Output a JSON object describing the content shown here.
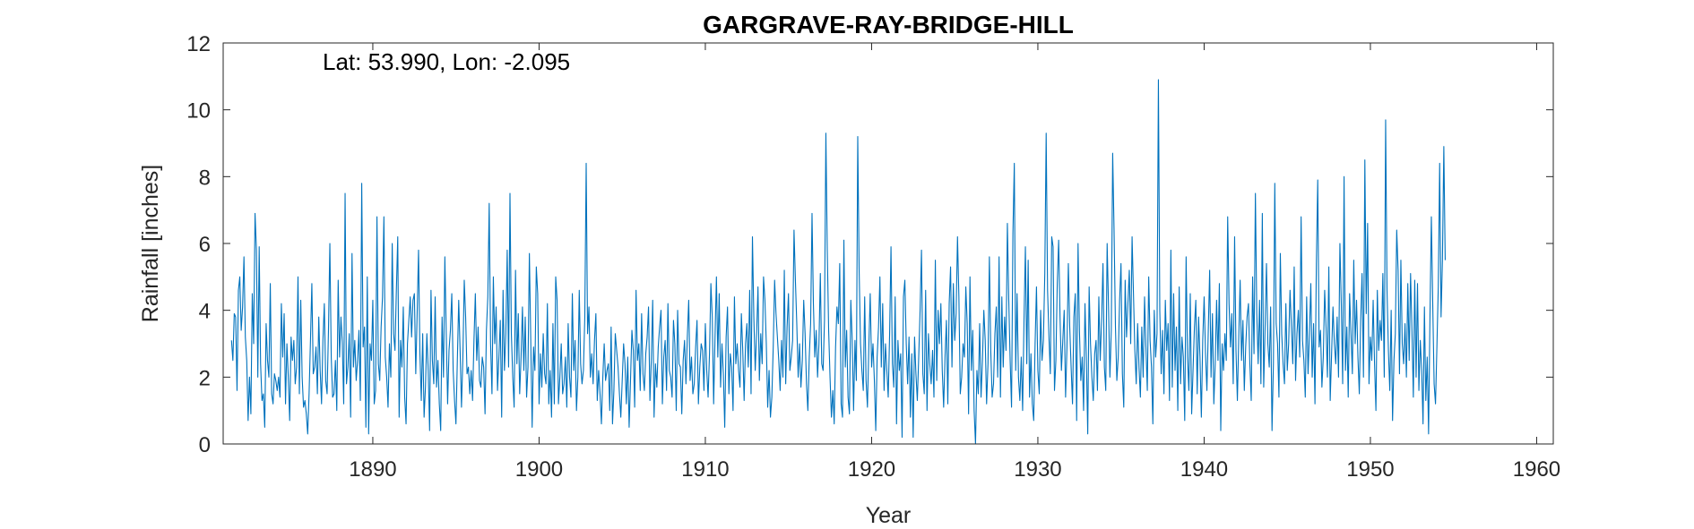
{
  "chart_data": {
    "type": "line",
    "title": "GARGRAVE-RAY-BRIDGE-HILL",
    "annotation": "Lat: 53.990, Lon: -2.095",
    "xlabel": "Year",
    "ylabel": "Rainfall [inches]",
    "xlim": [
      1881,
      1961
    ],
    "ylim": [
      0,
      12
    ],
    "xticks": [
      1890,
      1900,
      1910,
      1920,
      1930,
      1940,
      1950,
      1960
    ],
    "yticks": [
      0,
      2,
      4,
      6,
      8,
      10,
      12
    ],
    "grid": false,
    "series_color": "#0072BD",
    "series": [
      {
        "x_start": 1881.5,
        "x_step": 0.0833333,
        "values": [
          3.1,
          2.5,
          3.9,
          3.8,
          1.6,
          4.6,
          5.0,
          3.4,
          4.1,
          5.6,
          3.2,
          2.5,
          0.7,
          2.0,
          0.9,
          4.5,
          3.0,
          6.9,
          5.8,
          2.0,
          5.9,
          2.4,
          1.3,
          1.5,
          0.5,
          3.6,
          2.5,
          2.0,
          4.8,
          1.5,
          1.2,
          2.1,
          1.9,
          1.6,
          2.0,
          1.4,
          4.2,
          2.6,
          3.9,
          1.2,
          3.0,
          2.0,
          0.7,
          3.2,
          2.5,
          3.1,
          1.8,
          2.3,
          5.0,
          1.5,
          4.3,
          2.0,
          1.1,
          1.3,
          0.9,
          0.3,
          1.5,
          3.1,
          4.8,
          2.1,
          2.3,
          2.9,
          1.5,
          3.8,
          2.2,
          1.2,
          3.1,
          4.2,
          1.9,
          1.5,
          3.4,
          6.0,
          2.6,
          1.4,
          1.5,
          2.5,
          1.0,
          4.9,
          2.6,
          3.8,
          3.0,
          1.2,
          7.5,
          1.8,
          2.3,
          3.3,
          0.8,
          5.7,
          2.3,
          3.1,
          1.9,
          2.5,
          3.4,
          1.3,
          7.8,
          2.9,
          3.5,
          0.5,
          5.0,
          0.3,
          3.0,
          2.5,
          4.3,
          1.2,
          1.6,
          6.8,
          2.4,
          1.9,
          3.5,
          4.4,
          6.8,
          2.6,
          2.0,
          1.1,
          3.0,
          2.0,
          6.0,
          3.3,
          2.8,
          4.6,
          6.2,
          0.8,
          3.1,
          2.3,
          4.1,
          1.4,
          0.6,
          3.0,
          3.7,
          4.4,
          3.2,
          4.3,
          4.5,
          2.1,
          3.9,
          5.8,
          2.7,
          1.3,
          3.3,
          0.8,
          1.7,
          3.3,
          2.2,
          0.4,
          4.6,
          2.5,
          1.8,
          4.4,
          1.7,
          2.5,
          1.2,
          0.4,
          3.8,
          2.0,
          5.6,
          3.3,
          1.2,
          2.8,
          3.4,
          4.5,
          2.2,
          1.3,
          0.6,
          2.5,
          4.3,
          2.8,
          1.1,
          2.6,
          4.9,
          3.8,
          2.1,
          2.3,
          1.5,
          2.2,
          1.3,
          3.1,
          4.5,
          2.5,
          3.5,
          1.9,
          1.7,
          2.6,
          2.3,
          0.9,
          3.4,
          4.4,
          7.2,
          3.0,
          1.5,
          5.0,
          3.0,
          4.1,
          1.6,
          2.6,
          3.7,
          0.8,
          4.6,
          2.2,
          3.3,
          5.8,
          2.3,
          7.5,
          3.3,
          2.0,
          1.1,
          5.2,
          2.4,
          3.9,
          1.5,
          2.6,
          4.1,
          2.2,
          3.8,
          1.4,
          2.3,
          5.7,
          3.1,
          0.5,
          2.9,
          2.2,
          5.3,
          4.5,
          1.2,
          2.7,
          1.7,
          3.3,
          2.1,
          1.8,
          4.2,
          1.2,
          2.2,
          0.8,
          3.6,
          1.2,
          5.0,
          4.3,
          1.2,
          2.0,
          3.0,
          1.5,
          1.8,
          2.6,
          1.1,
          3.6,
          2.0,
          1.4,
          4.5,
          2.2,
          3.1,
          1.0,
          2.0,
          4.6,
          2.4,
          1.8,
          2.2,
          3.8,
          8.4,
          3.3,
          4.1,
          2.0,
          2.7,
          1.8,
          3.1,
          3.9,
          1.3,
          2.2,
          1.5,
          0.6,
          2.0,
          3.0,
          1.9,
          2.2,
          2.4,
          1.0,
          3.5,
          0.6,
          1.6,
          3.3,
          2.8,
          2.3,
          1.5,
          0.8,
          1.9,
          3.0,
          2.4,
          1.2,
          2.6,
          0.5,
          1.9,
          3.4,
          2.8,
          1.1,
          4.6,
          2.5,
          3.0,
          1.6,
          3.9,
          2.1,
          1.6,
          2.7,
          3.2,
          4.1,
          1.3,
          2.5,
          4.3,
          0.8,
          2.4,
          1.7,
          2.9,
          3.5,
          4.0,
          1.2,
          2.6,
          3.1,
          1.6,
          4.2,
          2.2,
          2.0,
          1.4,
          3.7,
          3.0,
          1.0,
          4.0,
          2.4,
          2.3,
          0.9,
          2.5,
          3.1,
          1.8,
          3.2,
          4.3,
          1.9,
          2.6,
          1.5,
          1.8,
          2.9,
          3.7,
          1.2,
          2.3,
          3.0,
          2.8,
          1.6,
          3.6,
          2.2,
          1.4,
          2.7,
          4.8,
          3.8,
          1.2,
          3.2,
          5.0,
          2.6,
          4.5,
          1.7,
          3.0,
          2.1,
          0.5,
          3.2,
          4.1,
          1.5,
          2.7,
          2.3,
          1.0,
          4.4,
          2.4,
          3.0,
          2.2,
          1.7,
          3.9,
          2.8,
          1.3,
          3.0,
          3.6,
          2.3,
          4.6,
          1.5,
          6.2,
          3.8,
          2.2,
          3.3,
          4.7,
          1.9,
          3.3,
          2.4,
          5.0,
          4.3,
          3.0,
          1.1,
          2.2,
          0.8,
          1.4,
          2.9,
          4.9,
          3.9,
          3.2,
          2.5,
          1.6,
          3.1,
          2.0,
          5.2,
          1.8,
          3.5,
          4.5,
          2.2,
          2.6,
          3.1,
          6.4,
          4.9,
          3.6,
          2.0,
          3.0,
          1.7,
          2.5,
          4.3,
          3.3,
          1.8,
          1.0,
          2.6,
          3.6,
          6.9,
          4.2,
          2.6,
          3.4,
          2.0,
          3.0,
          5.1,
          2.4,
          2.2,
          3.7,
          9.3,
          5.8,
          3.4,
          2.0,
          0.8,
          1.6,
          0.6,
          2.9,
          4.1,
          3.6,
          5.4,
          1.2,
          0.8,
          6.1,
          2.3,
          3.4,
          1.4,
          0.9,
          4.3,
          3.1,
          1.0,
          3.1,
          1.9,
          9.2,
          5.2,
          3.0,
          2.2,
          1.6,
          4.4,
          1.9,
          1.1,
          2.9,
          4.5,
          2.3,
          3.0,
          1.9,
          0.4,
          2.6,
          3.5,
          5.0,
          2.3,
          4.2,
          1.6,
          3.0,
          2.2,
          1.4,
          3.3,
          5.9,
          2.4,
          1.7,
          4.4,
          0.6,
          3.1,
          2.2,
          2.7,
          0.2,
          4.4,
          4.9,
          3.0,
          1.8,
          3.2,
          0.8,
          2.7,
          0.2,
          3.2,
          2.1,
          1.3,
          2.6,
          4.0,
          5.8,
          2.1,
          1.5,
          4.6,
          1.0,
          3.3,
          2.4,
          1.8,
          2.8,
          1.4,
          5.5,
          1.9,
          4.0,
          3.0,
          4.2,
          2.2,
          1.1,
          2.6,
          3.7,
          1.2,
          4.2,
          5.3,
          2.3,
          4.8,
          3.1,
          3.9,
          6.2,
          4.4,
          1.5,
          2.0,
          3.0,
          2.6,
          4.7,
          3.6,
          0.9,
          5.0,
          2.2,
          3.4,
          1.0,
          0.0,
          2.2,
          1.5,
          3.6,
          1.4,
          2.5,
          4.0,
          3.1,
          1.2,
          2.4,
          5.6,
          2.8,
          1.4,
          1.8,
          3.3,
          4.1,
          2.0,
          5.6,
          1.4,
          4.4,
          2.3,
          3.8,
          2.8,
          6.6,
          4.3,
          2.5,
          1.1,
          6.3,
          8.4,
          2.2,
          4.5,
          2.0,
          1.3,
          2.6,
          1.0,
          3.7,
          5.9,
          2.4,
          5.5,
          1.4,
          2.7,
          1.2,
          0.7,
          3.0,
          4.7,
          2.2,
          1.5,
          4.0,
          2.5,
          3.1,
          5.1,
          9.3,
          4.6,
          3.2,
          2.1,
          6.2,
          5.9,
          1.6,
          2.5,
          4.8,
          6.1,
          3.8,
          2.2,
          3.1,
          4.0,
          1.4,
          2.9,
          5.4,
          3.5,
          2.3,
          1.2,
          3.8,
          4.5,
          0.7,
          6.0,
          3.4,
          1.9,
          2.6,
          1.0,
          4.2,
          2.6,
          0.3,
          4.7,
          3.0,
          2.0,
          1.3,
          2.7,
          3.1,
          1.6,
          4.4,
          2.5,
          3.7,
          5.4,
          2.3,
          1.6,
          6.0,
          4.1,
          2.0,
          3.4,
          8.7,
          6.4,
          3.5,
          1.9,
          2.6,
          4.3,
          5.4,
          2.1,
          1.1,
          4.9,
          3.2,
          4.2,
          5.2,
          3.0,
          6.2,
          4.5,
          2.8,
          1.8,
          3.6,
          2.3,
          1.4,
          3.5,
          2.0,
          4.4,
          2.9,
          1.6,
          5.0,
          3.1,
          2.3,
          0.6,
          4.0,
          2.6,
          3.3,
          10.9,
          4.0,
          2.1,
          3.4,
          1.5,
          4.3,
          2.8,
          3.6,
          1.3,
          5.8,
          1.7,
          4.5,
          2.2,
          3.5,
          1.0,
          4.7,
          1.8,
          3.2,
          2.6,
          0.7,
          5.6,
          2.6,
          1.6,
          4.5,
          0.9,
          2.2,
          3.5,
          4.3,
          1.5,
          3.8,
          2.6,
          0.8,
          3.1,
          4.4,
          2.7,
          1.6,
          3.4,
          5.2,
          2.0,
          3.9,
          1.2,
          2.4,
          4.3,
          2.5,
          4.8,
          0.4,
          3.0,
          2.2,
          3.3,
          2.5,
          6.8,
          4.2,
          2.9,
          3.9,
          1.8,
          6.2,
          2.8,
          1.3,
          3.2,
          4.9,
          2.5,
          3.7,
          1.6,
          2.9,
          3.8,
          4.2,
          2.4,
          1.3,
          5.0,
          2.7,
          7.5,
          3.9,
          2.4,
          4.3,
          1.8,
          6.9,
          1.7,
          3.5,
          5.4,
          3.0,
          2.3,
          4.1,
          0.4,
          2.4,
          7.8,
          3.6,
          3.0,
          1.4,
          5.7,
          3.3,
          2.4,
          1.8,
          4.2,
          2.2,
          3.0,
          4.6,
          3.5,
          2.4,
          5.3,
          1.9,
          3.3,
          4.0,
          2.6,
          6.8,
          3.1,
          2.5,
          1.4,
          4.4,
          2.1,
          3.3,
          4.8,
          2.0,
          3.6,
          1.2,
          5.4,
          7.9,
          2.9,
          3.4,
          1.7,
          2.6,
          4.6,
          3.5,
          2.0,
          5.3,
          1.3,
          2.7,
          4.1,
          3.0,
          2.4,
          3.8,
          2.0,
          6.0,
          4.2,
          1.8,
          8.0,
          2.2,
          3.5,
          1.4,
          4.5,
          3.3,
          2.1,
          5.5,
          3.0,
          4.3,
          2.6,
          1.5,
          3.7,
          5.1,
          2.0,
          8.5,
          3.9,
          6.6,
          1.8,
          3.2,
          2.5,
          4.3,
          2.4,
          1.0,
          4.6,
          2.8,
          3.7,
          3.1,
          5.1,
          2.0,
          9.7,
          4.6,
          2.8,
          1.6,
          4.0,
          0.7,
          2.5,
          3.3,
          6.4,
          5.2,
          2.1,
          5.5,
          3.0,
          2.4,
          3.6,
          2.0,
          4.8,
          2.5,
          5.1,
          3.4,
          1.4,
          4.9,
          2.0,
          4.8,
          1.6,
          3.1,
          2.2,
          0.6,
          4.1,
          1.3,
          2.6,
          0.3,
          3.8,
          6.8,
          4.2,
          1.8,
          1.2,
          2.9,
          4.7,
          8.4,
          3.8,
          5.5,
          8.9,
          5.5
        ]
      }
    ]
  }
}
